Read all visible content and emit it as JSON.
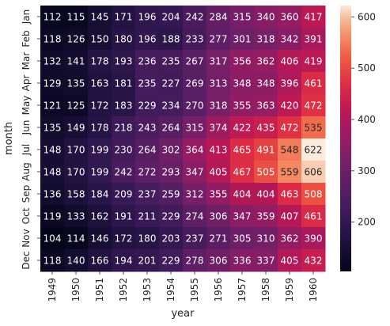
{
  "chart_data": {
    "type": "heatmap",
    "title": "",
    "xlabel": "year",
    "ylabel": "month",
    "x_categories": [
      "1949",
      "1950",
      "1951",
      "1952",
      "1953",
      "1954",
      "1955",
      "1956",
      "1957",
      "1958",
      "1959",
      "1960"
    ],
    "y_categories": [
      "Jan",
      "Feb",
      "Mar",
      "Apr",
      "May",
      "Jun",
      "Jul",
      "Aug",
      "Sep",
      "Oct",
      "Nov",
      "Dec"
    ],
    "values": [
      [
        112,
        115,
        145,
        171,
        196,
        204,
        242,
        284,
        315,
        340,
        360,
        417
      ],
      [
        118,
        126,
        150,
        180,
        196,
        188,
        233,
        277,
        301,
        318,
        342,
        391
      ],
      [
        132,
        141,
        178,
        193,
        236,
        235,
        267,
        317,
        356,
        362,
        406,
        419
      ],
      [
        129,
        135,
        163,
        181,
        235,
        227,
        269,
        313,
        348,
        348,
        396,
        461
      ],
      [
        121,
        125,
        172,
        183,
        229,
        234,
        270,
        318,
        355,
        363,
        420,
        472
      ],
      [
        135,
        149,
        178,
        218,
        243,
        264,
        315,
        374,
        422,
        435,
        472,
        535
      ],
      [
        148,
        170,
        199,
        230,
        264,
        302,
        364,
        413,
        465,
        491,
        548,
        622
      ],
      [
        148,
        170,
        199,
        242,
        272,
        293,
        347,
        405,
        467,
        505,
        559,
        606
      ],
      [
        136,
        158,
        184,
        209,
        237,
        259,
        312,
        355,
        404,
        404,
        463,
        508
      ],
      [
        119,
        133,
        162,
        191,
        211,
        229,
        274,
        306,
        347,
        359,
        407,
        461
      ],
      [
        104,
        114,
        146,
        172,
        180,
        203,
        237,
        271,
        305,
        310,
        362,
        390
      ],
      [
        118,
        140,
        166,
        194,
        201,
        229,
        278,
        306,
        336,
        337,
        405,
        432
      ]
    ],
    "colorscale": "rocket",
    "value_range": [
      104,
      622
    ],
    "colorbar_ticks": [
      200,
      300,
      400,
      500,
      600
    ],
    "annotations": true,
    "grid": false,
    "legend": "colorbar-right"
  }
}
